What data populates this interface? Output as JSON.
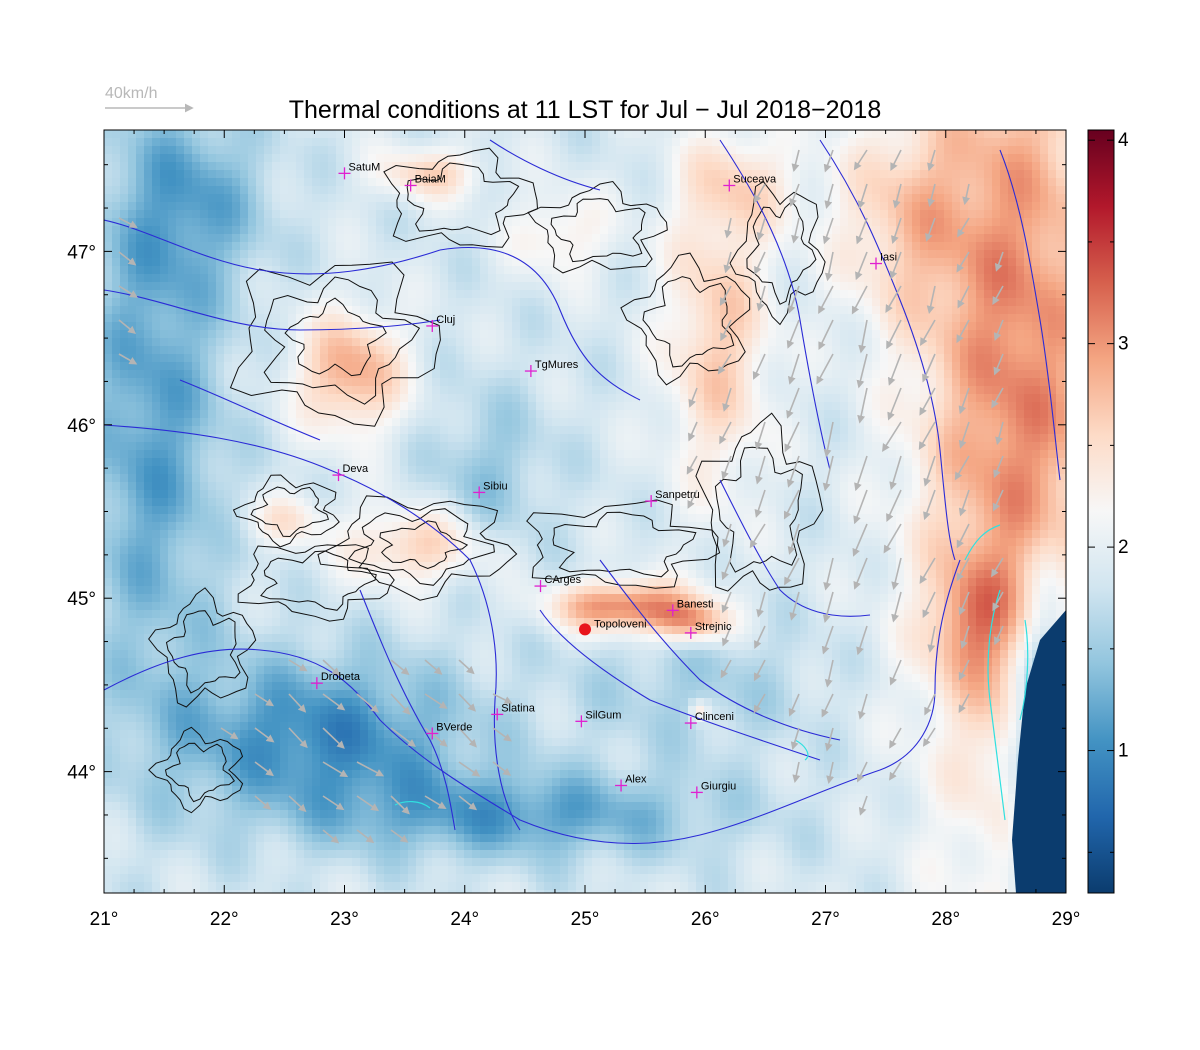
{
  "title": "Thermal conditions at 11 LST for Jul − Jul  2018−2018",
  "wind_scale": {
    "label": "40km/h"
  },
  "map": {
    "lon_range": [
      21,
      29
    ],
    "lat_range": [
      43.3,
      47.7
    ],
    "x_ticks": [
      "21°",
      "22°",
      "23°",
      "24°",
      "25°",
      "26°",
      "27°",
      "28°",
      "29°"
    ],
    "y_ticks": [
      "44°",
      "45°",
      "46°",
      "47°"
    ],
    "marker": {
      "name": "Topoloveni",
      "lon": 25.0,
      "lat": 44.82,
      "color": "#e8141c"
    },
    "cities": [
      {
        "name": "SatuM",
        "lon": 23.0,
        "lat": 47.45
      },
      {
        "name": "BaiaM",
        "lon": 23.55,
        "lat": 47.38
      },
      {
        "name": "Suceava",
        "lon": 26.2,
        "lat": 47.38
      },
      {
        "name": "Iasi",
        "lon": 27.42,
        "lat": 46.93
      },
      {
        "name": "Cluj",
        "lon": 23.73,
        "lat": 46.57
      },
      {
        "name": "TgMures",
        "lon": 24.55,
        "lat": 46.31
      },
      {
        "name": "Deva",
        "lon": 22.95,
        "lat": 45.71
      },
      {
        "name": "Sibiu",
        "lon": 24.12,
        "lat": 45.61
      },
      {
        "name": "Sanpetru",
        "lon": 25.55,
        "lat": 45.56
      },
      {
        "name": "CArges",
        "lon": 24.63,
        "lat": 45.07
      },
      {
        "name": "Banesti",
        "lon": 25.73,
        "lat": 44.93
      },
      {
        "name": "Strejnic",
        "lon": 25.88,
        "lat": 44.8
      },
      {
        "name": "Drobeta",
        "lon": 22.77,
        "lat": 44.51
      },
      {
        "name": "Slatina",
        "lon": 24.27,
        "lat": 44.33
      },
      {
        "name": "SilGum",
        "lon": 24.97,
        "lat": 44.29
      },
      {
        "name": "Clinceni",
        "lon": 25.88,
        "lat": 44.28
      },
      {
        "name": "BVerde",
        "lon": 23.73,
        "lat": 44.22
      },
      {
        "name": "Alex",
        "lon": 25.3,
        "lat": 43.92
      },
      {
        "name": "Giurgiu",
        "lon": 25.93,
        "lat": 43.88
      }
    ]
  },
  "colorbar": {
    "min": 0.3,
    "max": 4.05,
    "ticks": [
      "1",
      "2",
      "3",
      "4"
    ],
    "tick_values": [
      1,
      2,
      3,
      4
    ],
    "colors": [
      "#0b3c6e",
      "#2166ac",
      "#4393c3",
      "#92c5de",
      "#d1e5f0",
      "#f7f7f7",
      "#fddbc7",
      "#f4a582",
      "#d6604d",
      "#b2182b",
      "#67001f"
    ]
  },
  "colors": {
    "river": "#2b2bd6",
    "wind_arrow": "#b4b4b4",
    "city_marker": "#e020d0",
    "water": "#0b3c6e",
    "lake_outline": "#30e0e0"
  }
}
